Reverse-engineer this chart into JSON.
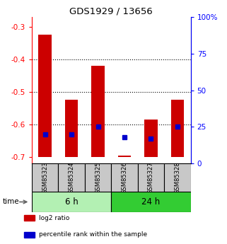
{
  "title": "GDS1929 / 13656",
  "samples": [
    "GSM85323",
    "GSM85324",
    "GSM85325",
    "GSM85326",
    "GSM85327",
    "GSM85328"
  ],
  "log2_ratio": [
    -0.325,
    -0.525,
    -0.42,
    -0.695,
    -0.585,
    -0.525
  ],
  "percentile_rank_vals": [
    20,
    20,
    25,
    18,
    17,
    25
  ],
  "groups": [
    {
      "label": "6 h",
      "indices": [
        0,
        1,
        2
      ],
      "color": "#b3f0b3"
    },
    {
      "label": "24 h",
      "indices": [
        3,
        4,
        5
      ],
      "color": "#33cc33"
    }
  ],
  "ylim_left": [
    -0.72,
    -0.27
  ],
  "ylim_right": [
    0,
    100
  ],
  "yticks_left": [
    -0.7,
    -0.6,
    -0.5,
    -0.4,
    -0.3
  ],
  "yticks_right": [
    0,
    25,
    50,
    75,
    100
  ],
  "bar_width": 0.5,
  "bar_color_red": "#cc0000",
  "bar_color_blue": "#0000cc",
  "label_bg_color": "#c8c8c8",
  "time_label": "time",
  "legend_items": [
    {
      "label": "log2 ratio",
      "color": "#cc0000"
    },
    {
      "label": "percentile rank within the sample",
      "color": "#0000cc"
    }
  ]
}
